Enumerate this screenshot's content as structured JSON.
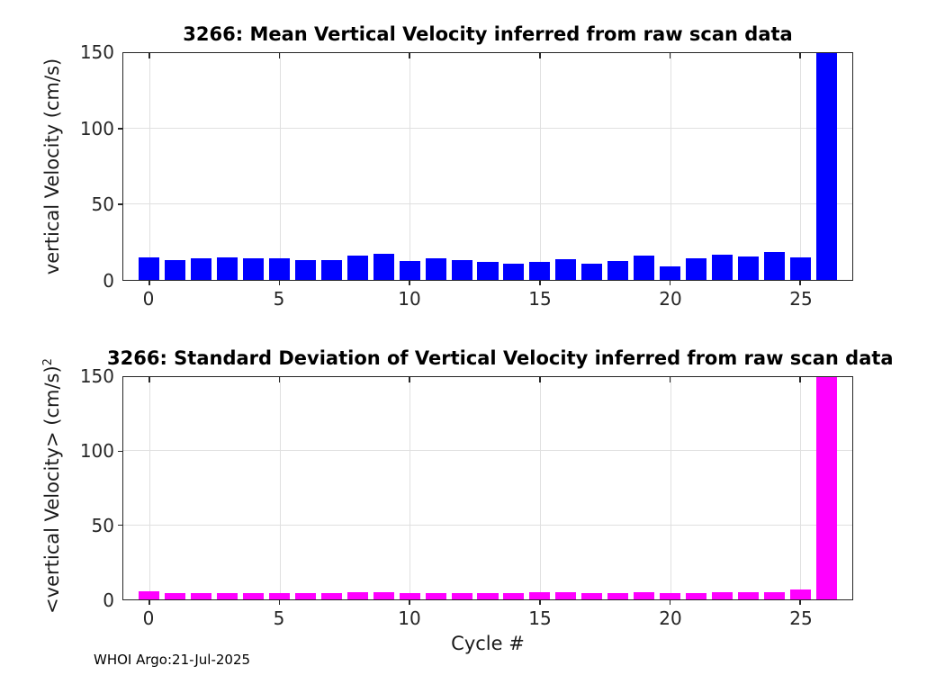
{
  "figure": {
    "footer": "WHOI Argo:21-Jul-2025",
    "bg_color": "#ffffff",
    "axis_color": "#262626",
    "grid_color": "#e0e0e0",
    "text_color": "#262626"
  },
  "chart_data": [
    {
      "type": "bar",
      "title": "3266: Mean Vertical Velocity inferred from raw scan data",
      "ylabel": "vertical Velocity (cm/s)",
      "ylabel_sup": "",
      "xlabel": "",
      "bar_color": "#0000ff",
      "categories": [
        0,
        1,
        2,
        3,
        4,
        5,
        6,
        7,
        8,
        9,
        10,
        11,
        12,
        13,
        14,
        15,
        16,
        17,
        18,
        19,
        20,
        21,
        22,
        23,
        24,
        25,
        26
      ],
      "values": [
        15,
        13,
        14,
        15,
        14,
        14,
        13,
        13,
        16,
        17.5,
        12.5,
        14,
        13,
        12,
        10.5,
        12,
        13.5,
        11,
        12.5,
        16,
        9,
        14.5,
        16.5,
        15.5,
        18.5,
        15,
        150
      ],
      "xlim": [
        -1,
        27
      ],
      "ylim": [
        0,
        150
      ],
      "xticks": [
        0,
        5,
        10,
        15,
        20,
        25
      ],
      "yticks": [
        0,
        50,
        100,
        150
      ],
      "grid": true,
      "legend": "none",
      "bar_width_frac": 0.8
    },
    {
      "type": "bar",
      "title": "3266: Standard Deviation of Vertical Velocity inferred from raw scan data",
      "ylabel": "<vertical Velocity> (cm/s)",
      "ylabel_sup": "2",
      "xlabel": "Cycle #",
      "bar_color": "#ff00ff",
      "categories": [
        0,
        1,
        2,
        3,
        4,
        5,
        6,
        7,
        8,
        9,
        10,
        11,
        12,
        13,
        14,
        15,
        16,
        17,
        18,
        19,
        20,
        21,
        22,
        23,
        24,
        25,
        26
      ],
      "values": [
        5.5,
        4.5,
        4.5,
        4,
        4.5,
        4.5,
        4.5,
        4.5,
        5,
        5,
        4.5,
        4.5,
        4.5,
        4.5,
        4.5,
        5,
        5,
        4.5,
        4.5,
        5,
        4.5,
        4.5,
        5,
        5,
        5,
        6.5,
        150
      ],
      "xlim": [
        -1,
        27
      ],
      "ylim": [
        0,
        150
      ],
      "xticks": [
        0,
        5,
        10,
        15,
        20,
        25
      ],
      "yticks": [
        0,
        50,
        100,
        150
      ],
      "grid": true,
      "legend": "none",
      "bar_width_frac": 0.8
    }
  ]
}
